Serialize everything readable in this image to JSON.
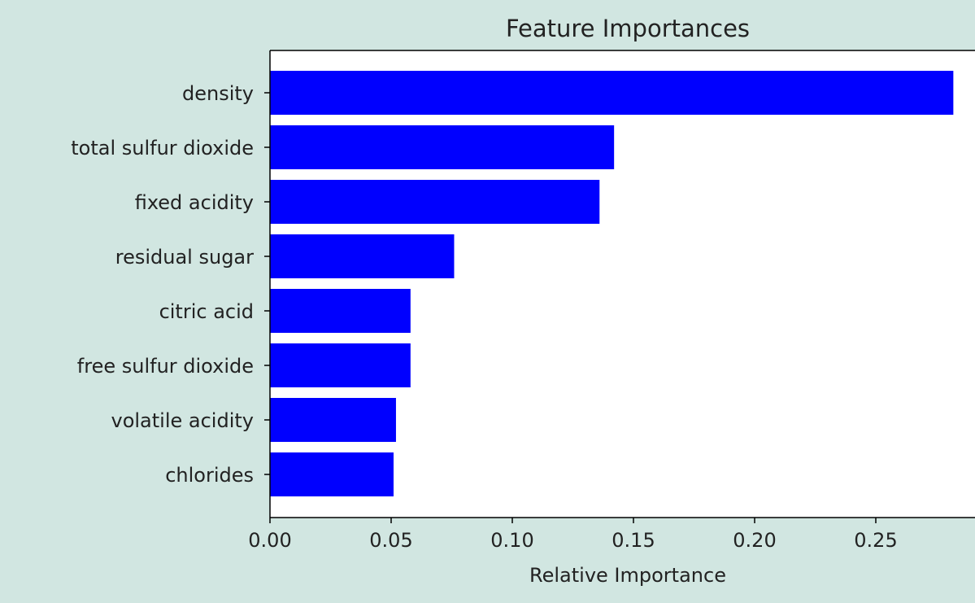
{
  "colors": {
    "background": "#d1e6e1",
    "plot_area": "#ffffff",
    "bar": "#0000ff",
    "axis": "#000000",
    "text": "#222222"
  },
  "chart_data": {
    "type": "bar",
    "orientation": "horizontal",
    "title": "Feature Importances",
    "xlabel": "Relative Importance",
    "ylabel": "",
    "categories": [
      "density",
      "total sulfur dioxide",
      "fixed acidity",
      "residual sugar",
      "citric acid",
      "free sulfur dioxide",
      "volatile acidity",
      "chlorides"
    ],
    "values": [
      0.282,
      0.142,
      0.136,
      0.076,
      0.058,
      0.058,
      0.052,
      0.051
    ],
    "xlim": [
      0,
      0.29
    ],
    "xticks": [
      0.0,
      0.05,
      0.1,
      0.15,
      0.2,
      0.25
    ],
    "xtick_labels": [
      "0.00",
      "0.05",
      "0.10",
      "0.15",
      "0.20",
      "0.25"
    ],
    "grid": false,
    "legend": "none"
  }
}
